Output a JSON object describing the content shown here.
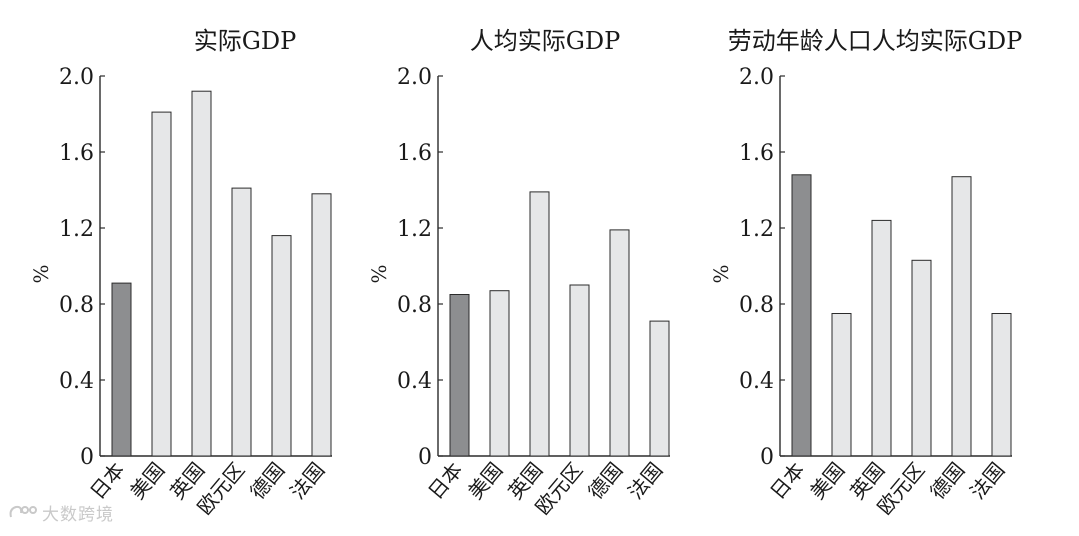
{
  "colors": {
    "highlight_bar": "#8d8e90",
    "bar": "#e6e7e8",
    "outline": "#2b2b2b"
  },
  "watermark": {
    "text": "大数跨境"
  },
  "chart_data": [
    {
      "type": "bar",
      "title": "实际GDP",
      "ylabel": "%",
      "ylim": [
        0,
        2.0
      ],
      "yticks": [
        "0",
        "0.4",
        "0.8",
        "1.2",
        "1.6",
        "2.0"
      ],
      "categories": [
        "日本",
        "美国",
        "英国",
        "欧元区",
        "德国",
        "法国"
      ],
      "values": [
        0.91,
        1.81,
        1.92,
        1.41,
        1.16,
        1.38
      ],
      "highlight": "日本"
    },
    {
      "type": "bar",
      "title": "人均实际GDP",
      "ylabel": "%",
      "ylim": [
        0,
        2.0
      ],
      "yticks": [
        "0",
        "0.4",
        "0.8",
        "1.2",
        "1.6",
        "2.0"
      ],
      "categories": [
        "日本",
        "美国",
        "英国",
        "欧元区",
        "德国",
        "法国"
      ],
      "values": [
        0.85,
        0.87,
        1.39,
        0.9,
        1.19,
        0.71
      ],
      "highlight": "日本"
    },
    {
      "type": "bar",
      "title": "劳动年龄人口人均实际GDP",
      "ylabel": "%",
      "ylim": [
        0,
        2.0
      ],
      "yticks": [
        "0",
        "0.4",
        "0.8",
        "1.2",
        "1.6",
        "2.0"
      ],
      "categories": [
        "日本",
        "美国",
        "英国",
        "欧元区",
        "德国",
        "法国"
      ],
      "values": [
        1.48,
        0.75,
        1.24,
        1.03,
        1.47,
        0.75
      ],
      "highlight": "日本"
    }
  ]
}
